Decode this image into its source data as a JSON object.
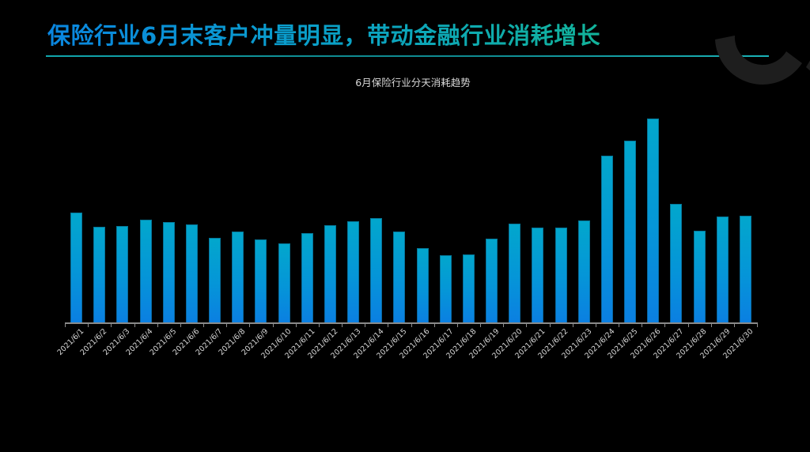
{
  "slide": {
    "title": "保险行业6月末客户冲量明显，带动金融行业消耗增长"
  },
  "colors": {
    "background": "#000000",
    "bar_top": "#02a7cc",
    "bar_bottom": "#0b7fe2",
    "title_start": "#0a86e0",
    "title_end": "#12b39a",
    "rule": "#11a6ad",
    "axis": "#8a8a8a"
  },
  "chart_data": {
    "type": "bar",
    "title": "6月保险行业分天消耗趋势",
    "xlabel": "",
    "ylabel": "",
    "y_axis_visible": false,
    "grid": false,
    "legend": null,
    "ylim": [
      0,
      260
    ],
    "categories": [
      "2021/6/1",
      "2021/6/2",
      "2021/6/3",
      "2021/6/4",
      "2021/6/5",
      "2021/6/6",
      "2021/6/7",
      "2021/6/8",
      "2021/6/9",
      "2021/6/10",
      "2021/6/11",
      "2021/6/12",
      "2021/6/13",
      "2021/6/14",
      "2021/6/15",
      "2021/6/16",
      "2021/6/17",
      "2021/6/18",
      "2021/6/19",
      "2021/6/20",
      "2021/6/21",
      "2021/6/22",
      "2021/6/23",
      "2021/6/24",
      "2021/6/25",
      "2021/6/26",
      "2021/6/27",
      "2021/6/28",
      "2021/6/29",
      "2021/6/30"
    ],
    "values": [
      140,
      122,
      123,
      131,
      128,
      125,
      108,
      116,
      106,
      101,
      114,
      124,
      129,
      133,
      116,
      95,
      86,
      87,
      107,
      126,
      121,
      121,
      130,
      212,
      231,
      259,
      151,
      117,
      135,
      136
    ],
    "value_note": "relative bar heights in px above baseline; no y-axis scale shown"
  }
}
